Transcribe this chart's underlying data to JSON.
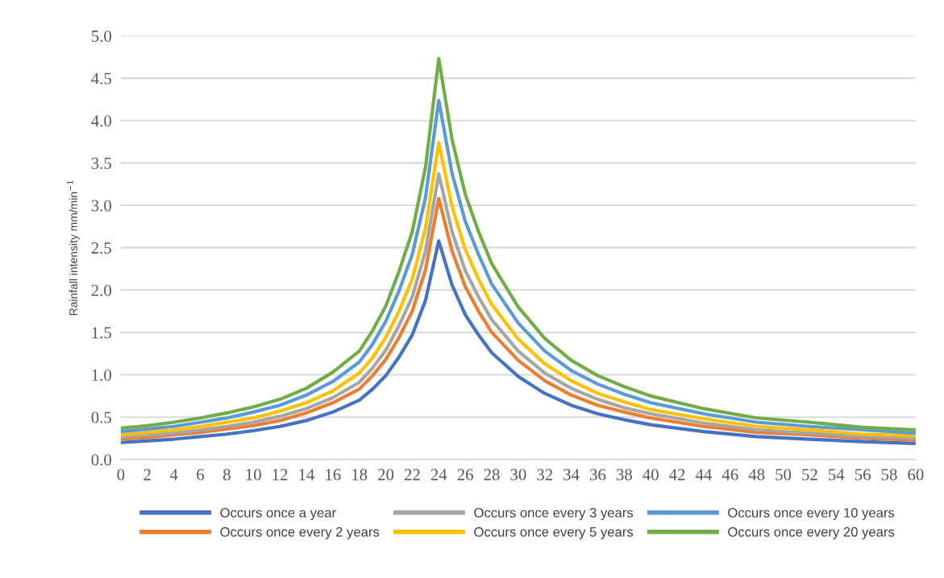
{
  "chart_data": {
    "type": "line",
    "ylabel": "Rainfall intensity mm/min$^{−1}$",
    "x": [
      0,
      2,
      4,
      6,
      8,
      10,
      12,
      14,
      16,
      18,
      19,
      20,
      21,
      22,
      23,
      24,
      25,
      26,
      27,
      28,
      30,
      32,
      34,
      36,
      38,
      40,
      44,
      48,
      52,
      56,
      60
    ],
    "series": [
      {
        "name": "Occurs once a year",
        "color": "#4472c4",
        "values": [
          0.2,
          0.22,
          0.24,
          0.27,
          0.3,
          0.34,
          0.39,
          0.46,
          0.56,
          0.7,
          0.83,
          0.99,
          1.21,
          1.47,
          1.88,
          2.58,
          2.06,
          1.71,
          1.47,
          1.26,
          0.98,
          0.78,
          0.64,
          0.54,
          0.47,
          0.41,
          0.33,
          0.27,
          0.24,
          0.21,
          0.19
        ]
      },
      {
        "name": "Occurs once every 2 years",
        "color": "#ed7d31",
        "values": [
          0.24,
          0.26,
          0.29,
          0.32,
          0.36,
          0.4,
          0.46,
          0.55,
          0.67,
          0.83,
          0.99,
          1.18,
          1.44,
          1.75,
          2.24,
          3.08,
          2.46,
          2.04,
          1.75,
          1.5,
          1.17,
          0.93,
          0.76,
          0.64,
          0.56,
          0.49,
          0.39,
          0.32,
          0.29,
          0.25,
          0.23
        ]
      },
      {
        "name": "Occurs once every 3 years",
        "color": "#a5a5a5",
        "values": [
          0.26,
          0.29,
          0.31,
          0.35,
          0.39,
          0.44,
          0.51,
          0.6,
          0.73,
          0.91,
          1.08,
          1.29,
          1.58,
          1.92,
          2.46,
          3.37,
          2.69,
          2.23,
          1.92,
          1.65,
          1.28,
          1.02,
          0.84,
          0.71,
          0.61,
          0.54,
          0.43,
          0.35,
          0.31,
          0.27,
          0.25
        ]
      },
      {
        "name": "Occurs once every 5 years",
        "color": "#ffc000",
        "values": [
          0.29,
          0.32,
          0.35,
          0.39,
          0.44,
          0.49,
          0.57,
          0.67,
          0.81,
          1.02,
          1.2,
          1.44,
          1.75,
          2.13,
          2.73,
          3.74,
          2.99,
          2.48,
          2.13,
          1.83,
          1.42,
          1.13,
          0.93,
          0.78,
          0.68,
          0.59,
          0.48,
          0.39,
          0.35,
          0.3,
          0.28
        ]
      },
      {
        "name": "Occurs once every 10 years",
        "color": "#5b9bd5",
        "values": [
          0.33,
          0.36,
          0.39,
          0.44,
          0.49,
          0.56,
          0.64,
          0.76,
          0.92,
          1.15,
          1.36,
          1.63,
          1.99,
          2.42,
          3.09,
          4.24,
          3.38,
          2.81,
          2.42,
          2.07,
          1.61,
          1.28,
          1.05,
          0.89,
          0.77,
          0.67,
          0.54,
          0.44,
          0.39,
          0.35,
          0.31
        ]
      },
      {
        "name": "Occurs once every 20 years",
        "color": "#70ad47",
        "values": [
          0.37,
          0.4,
          0.44,
          0.49,
          0.55,
          0.62,
          0.71,
          0.84,
          1.03,
          1.28,
          1.52,
          1.81,
          2.22,
          2.69,
          3.45,
          4.73,
          3.78,
          3.13,
          2.69,
          2.31,
          1.8,
          1.43,
          1.17,
          0.99,
          0.86,
          0.75,
          0.6,
          0.49,
          0.44,
          0.38,
          0.35
        ]
      }
    ],
    "xlim": [
      0,
      60
    ],
    "xticks": [
      0,
      2,
      4,
      6,
      8,
      10,
      12,
      14,
      16,
      18,
      20,
      22,
      24,
      26,
      28,
      30,
      32,
      34,
      36,
      38,
      40,
      42,
      44,
      46,
      48,
      50,
      52,
      54,
      56,
      58,
      60
    ],
    "ylim": [
      0,
      5
    ],
    "yticks": [
      {
        "value": 0,
        "label": "0.0"
      },
      {
        "value": 0.5,
        "label": "0.5"
      },
      {
        "value": 1,
        "label": "1.0"
      },
      {
        "value": 1.5,
        "label": "1.5"
      },
      {
        "value": 2,
        "label": "2.0"
      },
      {
        "value": 2.5,
        "label": "2.5"
      },
      {
        "value": 3,
        "label": "3.0"
      },
      {
        "value": 3.5,
        "label": "3.5"
      },
      {
        "value": 4,
        "label": "4.0"
      },
      {
        "value": 4.5,
        "label": "4.5"
      },
      {
        "value": 5,
        "label": "5.0"
      }
    ],
    "grid": "y",
    "legend": "bottom",
    "marker": "none",
    "line_style": "solid"
  }
}
